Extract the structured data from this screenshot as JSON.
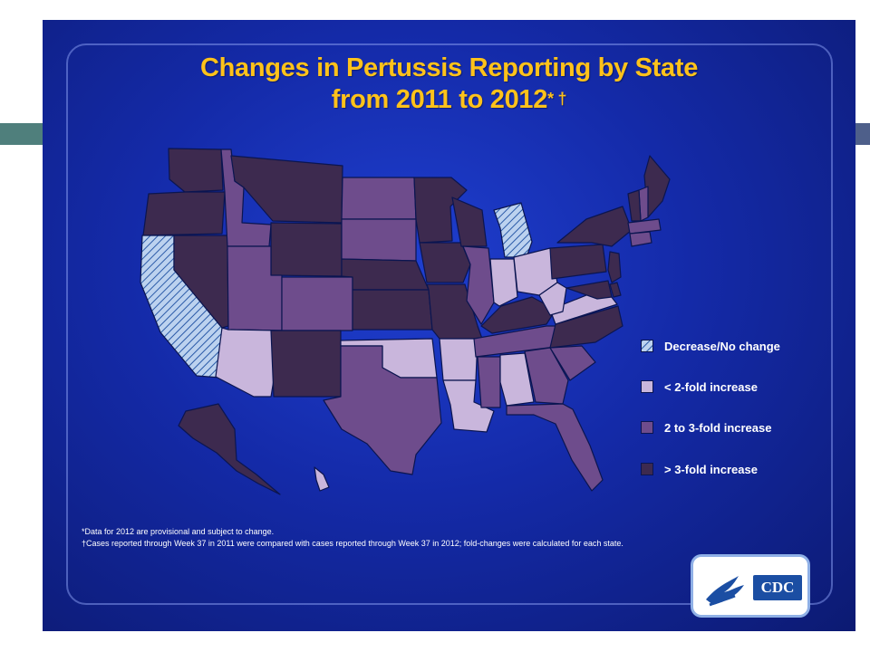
{
  "title": {
    "line1": "Changes in Pertussis Reporting by State",
    "line2": "from 2011 to 2012",
    "marks": "* †"
  },
  "colors": {
    "decrease": "#bcd2ef",
    "lt2": "#c9b6dc",
    "two_to_three": "#6e4c8c",
    "gt3": "#3d2a4f",
    "border": "#0b1550",
    "title": "#ffc21a"
  },
  "legend": [
    {
      "key": "decrease",
      "label": "Decrease/No change"
    },
    {
      "key": "lt2",
      "label": "< 2-fold increase"
    },
    {
      "key": "two_to_three",
      "label": "2 to 3-fold increase"
    },
    {
      "key": "gt3",
      "label": "> 3-fold increase"
    }
  ],
  "states": {
    "WA": "gt3",
    "OR": "gt3",
    "CA": "decrease",
    "NV": "gt3",
    "ID": "two_to_three",
    "MT": "gt3",
    "WY": "gt3",
    "UT": "two_to_three",
    "AZ": "lt2",
    "CO": "two_to_three",
    "NM": "gt3",
    "ND": "two_to_three",
    "SD": "two_to_three",
    "NE": "gt3",
    "KS": "gt3",
    "OK": "lt2",
    "TX": "two_to_three",
    "MN": "gt3",
    "IA": "gt3",
    "MO": "gt3",
    "AR": "lt2",
    "LA": "lt2",
    "WI": "gt3",
    "IL": "two_to_three",
    "MI": "decrease",
    "IN": "lt2",
    "OH": "lt2",
    "KY": "gt3",
    "TN": "two_to_three",
    "MS": "two_to_three",
    "AL": "lt2",
    "GA": "two_to_three",
    "FL": "two_to_three",
    "SC": "two_to_three",
    "NC": "gt3",
    "VA": "lt2",
    "WV": "lt2",
    "PA": "gt3",
    "NY": "gt3",
    "ME": "gt3",
    "NH": "two_to_three",
    "VT": "gt3",
    "MA": "two_to_three",
    "CT": "two_to_three",
    "NJ": "gt3",
    "DE": "gt3",
    "MD": "gt3",
    "AK": "gt3",
    "HI": "lt2"
  },
  "footnotes": {
    "note1": "*Data for 2012 are provisional and subject to change.",
    "note2": "†Cases reported through Week 37 in 2011 were compared with cases reported through Week 37 in 2012; fold-changes were calculated for each state."
  },
  "logo": {
    "text": "CDC"
  }
}
